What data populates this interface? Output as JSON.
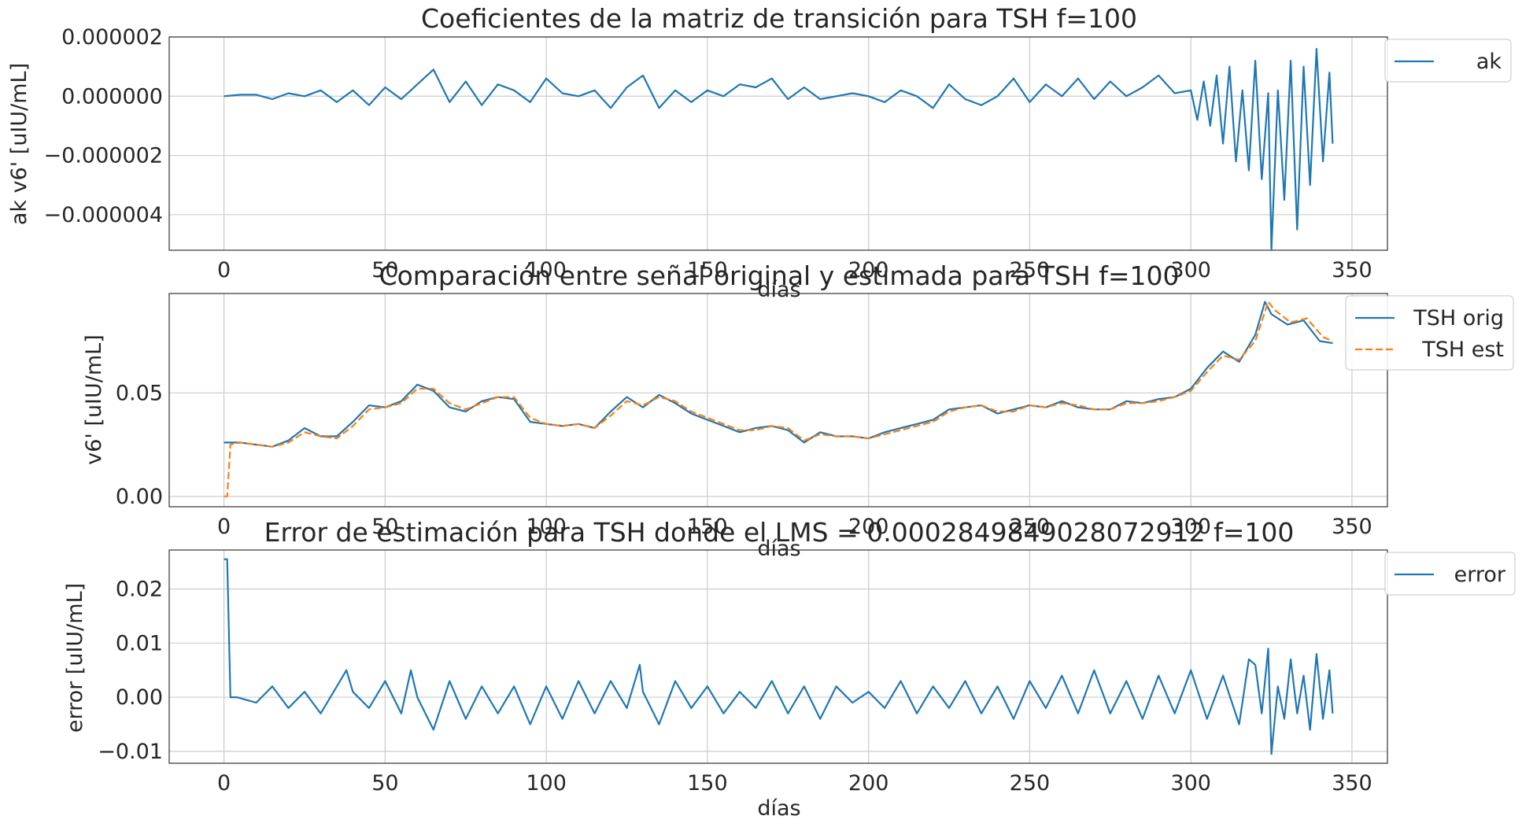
{
  "colors": {
    "series_1": "#1f77b4",
    "series_2": "#ff7f0e",
    "grid": "#cccccc",
    "text": "#262626"
  },
  "chart_data": [
    {
      "type": "line",
      "title": "Coeficientes de la matriz de transición para TSH f=100",
      "xlabel": "días",
      "ylabel": "ak v6' [uIU/mL]",
      "xlim": [
        -17,
        361
      ],
      "ylim": [
        -5.2e-06,
        2e-06
      ],
      "xticks": [
        0,
        50,
        100,
        150,
        200,
        250,
        300,
        350
      ],
      "yticks": [
        -4e-06,
        -2e-06,
        0.0,
        2e-06
      ],
      "ytick_labels": [
        "−0.000004",
        "−0.000002",
        "0.000000",
        "0.000002"
      ],
      "grid": true,
      "legend": {
        "placement": "outside-top-right",
        "entries": [
          "ak"
        ]
      },
      "series": [
        {
          "name": "ak",
          "style": "solid",
          "color": "#1f77b4",
          "x": [
            0,
            5,
            10,
            15,
            20,
            25,
            30,
            35,
            40,
            45,
            50,
            55,
            60,
            65,
            70,
            75,
            80,
            85,
            90,
            95,
            100,
            105,
            110,
            115,
            120,
            125,
            130,
            135,
            140,
            145,
            150,
            155,
            160,
            165,
            170,
            175,
            180,
            185,
            190,
            195,
            200,
            205,
            210,
            215,
            220,
            225,
            230,
            235,
            240,
            245,
            250,
            255,
            260,
            265,
            270,
            275,
            280,
            285,
            290,
            295,
            300,
            302,
            304,
            306,
            308,
            310,
            312,
            314,
            316,
            318,
            320,
            322,
            324,
            325,
            327,
            329,
            331,
            333,
            335,
            337,
            339,
            341,
            343,
            344
          ],
          "y": [
            0.0,
            5e-08,
            5e-08,
            -1e-07,
            1e-07,
            0.0,
            2e-07,
            -2e-07,
            2e-07,
            -3e-07,
            3e-07,
            -1e-07,
            4e-07,
            9e-07,
            -2e-07,
            5e-07,
            -3e-07,
            4e-07,
            2e-07,
            -2e-07,
            6e-07,
            1e-07,
            0.0,
            2e-07,
            -4e-07,
            3e-07,
            7e-07,
            -4e-07,
            2e-07,
            -2e-07,
            2e-07,
            0.0,
            4e-07,
            3e-07,
            6e-07,
            -1e-07,
            3e-07,
            -1e-07,
            0.0,
            1e-07,
            0.0,
            -2e-07,
            2e-07,
            0.0,
            -4e-07,
            4e-07,
            -1e-07,
            -3e-07,
            0.0,
            6e-07,
            -2e-07,
            4e-07,
            0.0,
            6e-07,
            -1e-07,
            5e-07,
            0.0,
            3e-07,
            7e-07,
            1e-07,
            2e-07,
            -8e-07,
            5e-07,
            -1e-06,
            7e-07,
            -1.6e-06,
            1e-06,
            -2.2e-06,
            2e-07,
            -2.5e-06,
            1.2e-06,
            -2.8e-06,
            1e-07,
            -5.2e-06,
            2e-07,
            -3.5e-06,
            1.2e-06,
            -4.5e-06,
            1e-06,
            -3e-06,
            1.6e-06,
            -2.2e-06,
            8e-07,
            -1.6e-06
          ]
        }
      ]
    },
    {
      "type": "line",
      "title": "Comparación entre señal original y estimada para TSH f=100",
      "xlabel": "días",
      "ylabel": "v6' [uIU/mL]",
      "xlim": [
        -17,
        361
      ],
      "ylim": [
        -0.005,
        0.098
      ],
      "xticks": [
        0,
        50,
        100,
        150,
        200,
        250,
        300,
        350
      ],
      "yticks": [
        0.0,
        0.05
      ],
      "ytick_labels": [
        "0.00",
        "0.05"
      ],
      "grid": true,
      "legend": {
        "placement": "outside-top-right",
        "entries": [
          "TSH orig",
          "TSH est"
        ]
      },
      "series": [
        {
          "name": "TSH orig",
          "style": "solid",
          "color": "#1f77b4",
          "x": [
            0,
            5,
            10,
            15,
            20,
            25,
            30,
            35,
            40,
            45,
            50,
            55,
            60,
            65,
            70,
            75,
            80,
            85,
            90,
            95,
            100,
            105,
            110,
            115,
            120,
            125,
            130,
            135,
            140,
            145,
            150,
            155,
            160,
            165,
            170,
            175,
            180,
            185,
            190,
            195,
            200,
            205,
            210,
            215,
            220,
            225,
            230,
            235,
            240,
            245,
            250,
            255,
            260,
            265,
            270,
            275,
            280,
            285,
            290,
            295,
            300,
            305,
            310,
            315,
            320,
            323,
            325,
            330,
            335,
            340,
            344
          ],
          "y": [
            0.026,
            0.026,
            0.025,
            0.024,
            0.027,
            0.033,
            0.029,
            0.029,
            0.036,
            0.044,
            0.043,
            0.046,
            0.054,
            0.051,
            0.043,
            0.041,
            0.046,
            0.048,
            0.047,
            0.036,
            0.035,
            0.034,
            0.035,
            0.033,
            0.041,
            0.048,
            0.043,
            0.049,
            0.045,
            0.04,
            0.037,
            0.034,
            0.031,
            0.033,
            0.034,
            0.032,
            0.026,
            0.031,
            0.029,
            0.029,
            0.028,
            0.031,
            0.033,
            0.035,
            0.037,
            0.042,
            0.043,
            0.044,
            0.04,
            0.042,
            0.044,
            0.043,
            0.046,
            0.043,
            0.042,
            0.042,
            0.046,
            0.045,
            0.047,
            0.048,
            0.052,
            0.062,
            0.07,
            0.065,
            0.078,
            0.094,
            0.088,
            0.083,
            0.085,
            0.075,
            0.074
          ]
        },
        {
          "name": "TSH est",
          "style": "dashed",
          "color": "#ff7f0e",
          "x": [
            0,
            1,
            2,
            5,
            10,
            15,
            20,
            25,
            30,
            35,
            40,
            45,
            50,
            55,
            60,
            65,
            70,
            75,
            80,
            85,
            90,
            95,
            100,
            105,
            110,
            115,
            120,
            125,
            130,
            135,
            140,
            145,
            150,
            155,
            160,
            165,
            170,
            175,
            180,
            185,
            190,
            195,
            200,
            205,
            210,
            215,
            220,
            225,
            230,
            235,
            240,
            245,
            250,
            255,
            260,
            265,
            270,
            275,
            280,
            285,
            290,
            295,
            300,
            305,
            310,
            315,
            320,
            324,
            326,
            331,
            336,
            341,
            344
          ],
          "y": [
            0.0,
            0.0,
            0.025,
            0.026,
            0.025,
            0.024,
            0.026,
            0.031,
            0.029,
            0.028,
            0.034,
            0.042,
            0.043,
            0.045,
            0.052,
            0.052,
            0.045,
            0.042,
            0.045,
            0.048,
            0.048,
            0.038,
            0.035,
            0.034,
            0.035,
            0.033,
            0.039,
            0.046,
            0.044,
            0.048,
            0.046,
            0.041,
            0.038,
            0.035,
            0.032,
            0.032,
            0.034,
            0.033,
            0.027,
            0.03,
            0.029,
            0.029,
            0.028,
            0.03,
            0.032,
            0.034,
            0.036,
            0.041,
            0.043,
            0.044,
            0.041,
            0.041,
            0.044,
            0.043,
            0.045,
            0.044,
            0.042,
            0.042,
            0.045,
            0.045,
            0.046,
            0.048,
            0.051,
            0.06,
            0.068,
            0.066,
            0.075,
            0.094,
            0.09,
            0.084,
            0.086,
            0.077,
            0.075
          ]
        }
      ]
    },
    {
      "type": "line",
      "title": "Error de estimación para TSH donde el LMS = 0.00028498490280729​12 f=100",
      "xlabel": "días",
      "ylabel": "error  [uIU/mL]",
      "xlim": [
        -17,
        361
      ],
      "ylim": [
        -0.0122,
        0.0272
      ],
      "xticks": [
        0,
        50,
        100,
        150,
        200,
        250,
        300,
        350
      ],
      "yticks": [
        -0.01,
        0.0,
        0.01,
        0.02
      ],
      "ytick_labels": [
        "−0.01",
        "0.00",
        "0.01",
        "0.02"
      ],
      "grid": true,
      "legend": {
        "placement": "outside-top-right",
        "entries": [
          "error"
        ]
      },
      "series": [
        {
          "name": "error",
          "style": "solid",
          "color": "#1f77b4",
          "x": [
            0,
            1,
            2,
            4,
            10,
            15,
            20,
            25,
            30,
            35,
            38,
            40,
            45,
            50,
            55,
            58,
            60,
            65,
            70,
            75,
            80,
            85,
            90,
            95,
            100,
            105,
            110,
            115,
            120,
            125,
            129,
            130,
            135,
            140,
            145,
            150,
            155,
            160,
            165,
            170,
            175,
            180,
            185,
            190,
            195,
            200,
            205,
            210,
            215,
            220,
            225,
            230,
            235,
            240,
            245,
            250,
            255,
            260,
            265,
            270,
            275,
            280,
            285,
            290,
            295,
            300,
            305,
            310,
            315,
            318,
            320,
            322,
            324,
            325,
            327,
            329,
            331,
            333,
            335,
            337,
            339,
            341,
            343,
            344
          ],
          "y": [
            0.0255,
            0.0255,
            0.0,
            0.0,
            -0.001,
            0.002,
            -0.002,
            0.001,
            -0.003,
            0.002,
            0.005,
            0.001,
            -0.002,
            0.003,
            -0.003,
            0.005,
            0.0,
            -0.006,
            0.003,
            -0.004,
            0.002,
            -0.003,
            0.002,
            -0.005,
            0.002,
            -0.004,
            0.003,
            -0.003,
            0.003,
            -0.002,
            0.006,
            0.001,
            -0.005,
            0.003,
            -0.002,
            0.002,
            -0.003,
            0.001,
            -0.002,
            0.003,
            -0.003,
            0.002,
            -0.004,
            0.002,
            -0.001,
            0.001,
            -0.002,
            0.003,
            -0.003,
            0.002,
            -0.002,
            0.003,
            -0.003,
            0.002,
            -0.004,
            0.003,
            -0.002,
            0.004,
            -0.003,
            0.005,
            -0.003,
            0.003,
            -0.004,
            0.004,
            -0.003,
            0.005,
            -0.004,
            0.004,
            -0.005,
            0.007,
            0.006,
            -0.003,
            0.009,
            -0.0105,
            0.002,
            -0.004,
            0.007,
            -0.003,
            0.004,
            -0.006,
            0.008,
            -0.004,
            0.005,
            -0.003
          ]
        }
      ]
    }
  ]
}
